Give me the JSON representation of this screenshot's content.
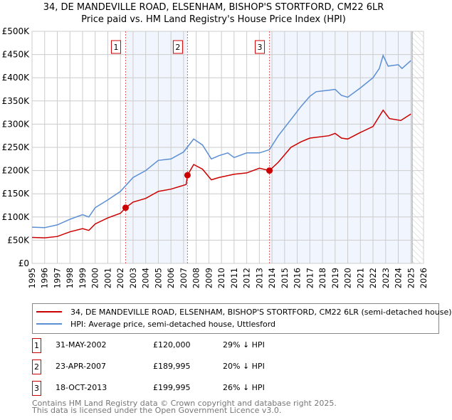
{
  "chart_data": {
    "type": "line",
    "title": "34, DE MANDEVILLE ROAD, ELSENHAM, BISHOP'S STORTFORD, CM22 6LR",
    "subtitle": "Price paid vs. HM Land Registry's House Price Index (HPI)",
    "xlim": [
      1995,
      2026
    ],
    "ylim": [
      0,
      500000
    ],
    "x_ticks": [
      "1995",
      "1996",
      "1997",
      "1998",
      "1999",
      "2000",
      "2001",
      "2002",
      "2003",
      "2004",
      "2005",
      "2006",
      "2007",
      "2008",
      "2009",
      "2010",
      "2011",
      "2012",
      "2013",
      "2014",
      "2015",
      "2016",
      "2017",
      "2018",
      "2019",
      "2020",
      "2021",
      "2022",
      "2023",
      "2024",
      "2025",
      "2026"
    ],
    "y_ticks": [
      {
        "v": 0,
        "label": "£0"
      },
      {
        "v": 50000,
        "label": "£50K"
      },
      {
        "v": 100000,
        "label": "£100K"
      },
      {
        "v": 150000,
        "label": "£150K"
      },
      {
        "v": 200000,
        "label": "£200K"
      },
      {
        "v": 250000,
        "label": "£250K"
      },
      {
        "v": 300000,
        "label": "£300K"
      },
      {
        "v": 350000,
        "label": "£350K"
      },
      {
        "v": 400000,
        "label": "£400K"
      },
      {
        "v": 450000,
        "label": "£450K"
      },
      {
        "v": 500000,
        "label": "£500K"
      }
    ],
    "grid": true,
    "shaded_ranges": [
      [
        2002.41,
        2007.31
      ],
      [
        2013.8,
        2025.1
      ]
    ],
    "forecast_hatch_from": 2025.1,
    "series": [
      {
        "name": "34, DE MANDEVILLE ROAD, ELSENHAM, BISHOP'S STORTFORD, CM22 6LR (semi-detached house)",
        "color": "#cc0000",
        "x": [
          1995,
          1996,
          1997,
          1998,
          1999,
          1999.5,
          2000,
          2001,
          2002,
          2002.41,
          2003,
          2004,
          2005,
          2006,
          2007.2,
          2007.31,
          2007.8,
          2008.5,
          2009.2,
          2009.8,
          2011,
          2012,
          2013,
          2013.8,
          2014.5,
          2015.5,
          2016.3,
          2017,
          2018.5,
          2019,
          2019.5,
          2020,
          2021,
          2022,
          2022.8,
          2023.3,
          2024.2,
          2025
        ],
        "y": [
          56000,
          55000,
          58000,
          68000,
          75000,
          71000,
          85000,
          98000,
          108000,
          120000,
          132000,
          140000,
          155000,
          160000,
          170000,
          189995,
          213000,
          203000,
          180000,
          185000,
          192000,
          195000,
          205000,
          199995,
          218000,
          250000,
          262000,
          270000,
          275000,
          280000,
          270000,
          268000,
          282000,
          295000,
          330000,
          312000,
          308000,
          322000
        ]
      },
      {
        "name": "HPI: Average price, semi-detached house, Uttlesford",
        "color": "#5b8fd4",
        "x": [
          1995,
          1996,
          1997,
          1998,
          1999,
          1999.5,
          2000,
          2001,
          2002,
          2003,
          2004,
          2005,
          2006,
          2007,
          2007.8,
          2008.5,
          2009.2,
          2009.8,
          2010.5,
          2011,
          2012,
          2013,
          2013.8,
          2014.5,
          2015.5,
          2016.3,
          2017,
          2017.5,
          2018.5,
          2019,
          2019.5,
          2020,
          2021,
          2022,
          2022.5,
          2022.8,
          2023.2,
          2024,
          2024.3,
          2025
        ],
        "y": [
          78000,
          77000,
          83000,
          95000,
          105000,
          100000,
          120000,
          137000,
          155000,
          185000,
          200000,
          222000,
          225000,
          240000,
          268000,
          255000,
          225000,
          232000,
          238000,
          228000,
          238000,
          238000,
          245000,
          275000,
          310000,
          338000,
          360000,
          370000,
          373000,
          375000,
          362000,
          358000,
          378000,
          400000,
          420000,
          448000,
          425000,
          428000,
          420000,
          437000
        ]
      }
    ],
    "sales": [
      {
        "n": "1",
        "x": 2002.41,
        "y": 120000,
        "date": "31-MAY-2002",
        "price": "£120,000",
        "hpi": "29% ↓ HPI"
      },
      {
        "n": "2",
        "x": 2007.31,
        "y": 189995,
        "date": "23-APR-2007",
        "price": "£189,995",
        "hpi": "20% ↓ HPI"
      },
      {
        "n": "3",
        "x": 2013.8,
        "y": 199995,
        "date": "18-OCT-2013",
        "price": "£199,995",
        "hpi": "26% ↓ HPI"
      }
    ]
  },
  "legend": {
    "red": "34, DE MANDEVILLE ROAD, ELSENHAM, BISHOP'S STORTFORD, CM22 6LR (semi-detached house)",
    "blue": "HPI: Average price, semi-detached house, Uttlesford"
  },
  "footer": {
    "line1": "Contains HM Land Registry data © Crown copyright and database right 2025.",
    "line2": "This data is licensed under the Open Government Licence v3.0."
  }
}
